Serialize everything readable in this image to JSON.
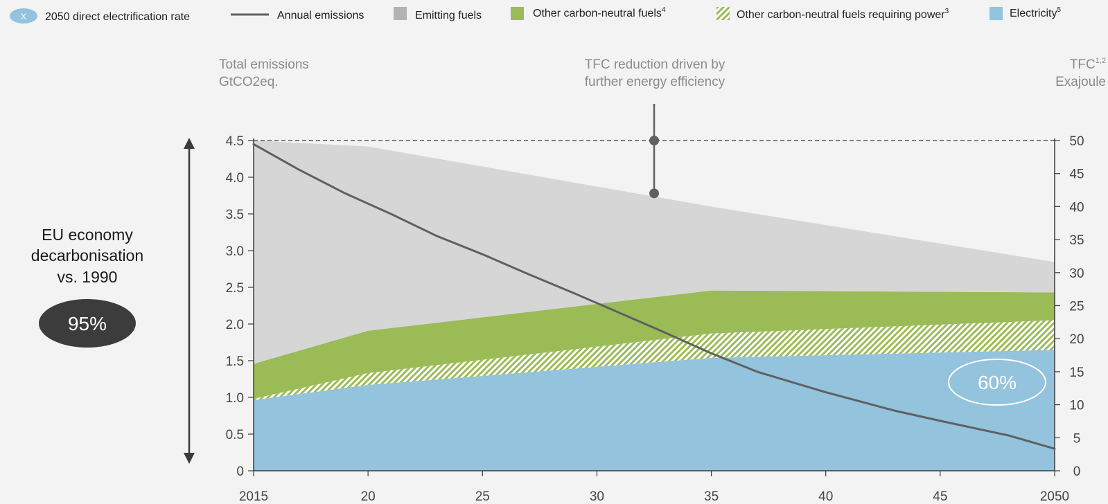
{
  "chart_data": {
    "type": "area",
    "legend": [
      {
        "key": "rate",
        "label": "2050 direct electrification rate",
        "swatch_text": "X",
        "swatch": "ellipse",
        "color": "#93c3dd"
      },
      {
        "key": "emissions",
        "label": "Annual emissions",
        "sup": "",
        "swatch": "line",
        "color": "#5f6062"
      },
      {
        "key": "emitting",
        "label": "Emitting fuels",
        "sup": "",
        "swatch": "square",
        "color": "#b3b3b3"
      },
      {
        "key": "other_neutral",
        "label": "Other carbon-neutral fuels",
        "sup": "4",
        "swatch": "square",
        "color": "#9bbb57"
      },
      {
        "key": "power_fuels",
        "label": "Other carbon-neutral fuels requiring power",
        "sup": "3",
        "swatch": "hatch",
        "color": "#9bbb57"
      },
      {
        "key": "electricity",
        "label": "Electricity",
        "sup": "5",
        "swatch": "square",
        "color": "#93c3dd"
      }
    ],
    "left_axis": {
      "title_line1": "Total emissions",
      "title_line2": "GtCO2eq.",
      "range": [
        0,
        4.5
      ],
      "ticks": [
        {
          "value": 0,
          "label": "0"
        },
        {
          "value": 0.5,
          "label": "0.5"
        },
        {
          "value": 1.0,
          "label": "1.0"
        },
        {
          "value": 1.5,
          "label": "1.5"
        },
        {
          "value": 2.0,
          "label": "2.0"
        },
        {
          "value": 2.5,
          "label": "2.5"
        },
        {
          "value": 3.0,
          "label": "3.0"
        },
        {
          "value": 3.5,
          "label": "3.5"
        },
        {
          "value": 4.0,
          "label": "4.0"
        },
        {
          "value": 4.5,
          "label": "4.5"
        }
      ]
    },
    "right_axis": {
      "title": "TFC",
      "title_sup": "1,2",
      "unit": "Exajoule",
      "range": [
        0,
        50
      ],
      "ticks": [
        {
          "value": 0,
          "label": "0"
        },
        {
          "value": 5,
          "label": "5"
        },
        {
          "value": 10,
          "label": "10"
        },
        {
          "value": 15,
          "label": "15"
        },
        {
          "value": 20,
          "label": "20"
        },
        {
          "value": 25,
          "label": "25"
        },
        {
          "value": 30,
          "label": "30"
        },
        {
          "value": 35,
          "label": "35"
        },
        {
          "value": 40,
          "label": "40"
        },
        {
          "value": 45,
          "label": "45"
        },
        {
          "value": 50,
          "label": "50"
        }
      ]
    },
    "x_axis": {
      "range": [
        2015,
        2050
      ],
      "ticks": [
        {
          "value": 2015,
          "label": "2015"
        },
        {
          "value": 2020,
          "label": "20"
        },
        {
          "value": 2025,
          "label": "25"
        },
        {
          "value": 2030,
          "label": "30"
        },
        {
          "value": 2035,
          "label": "35"
        },
        {
          "value": 2040,
          "label": "40"
        },
        {
          "value": 2045,
          "label": "45"
        },
        {
          "value": 2050,
          "label": "2050"
        }
      ]
    },
    "tfc_x": [
      2015,
      2020,
      2035,
      2050
    ],
    "tfc_series": [
      {
        "name": "Electricity",
        "values": [
          10.7,
          13.0,
          17.1,
          18.3
        ]
      },
      {
        "name": "Other carbon-neutral fuels requiring power",
        "values": [
          0.2,
          1.8,
          3.7,
          4.5
        ]
      },
      {
        "name": "Other carbon-neutral fuels",
        "values": [
          5.3,
          6.4,
          6.5,
          4.2
        ]
      },
      {
        "name": "Emitting fuels",
        "values": [
          33.8,
          27.9,
          12.7,
          4.6
        ]
      }
    ],
    "emissions": {
      "name": "Annual emissions",
      "x": [
        2015,
        2017,
        2019,
        2021,
        2023,
        2025,
        2027,
        2029,
        2031,
        2033,
        2035,
        2037,
        2040,
        2043,
        2045,
        2048,
        2050
      ],
      "values": [
        4.45,
        4.1,
        3.78,
        3.5,
        3.2,
        2.95,
        2.68,
        2.42,
        2.15,
        1.88,
        1.6,
        1.35,
        1.07,
        0.82,
        0.68,
        0.48,
        0.3
      ]
    },
    "reference_line": {
      "value": 50,
      "axis": "right",
      "style": "dashed"
    },
    "annotation": {
      "text_line1": "TFC reduction driven by",
      "text_line2": "further energy efficiency",
      "x": 2032.5,
      "top_value": 50,
      "bottom_value": 42
    },
    "decarbonisation": {
      "line1": "EU economy",
      "line2": "decarbonisation",
      "line3": "vs. 1990",
      "value": "95%"
    },
    "electrification_rate": {
      "value": "60%"
    }
  }
}
